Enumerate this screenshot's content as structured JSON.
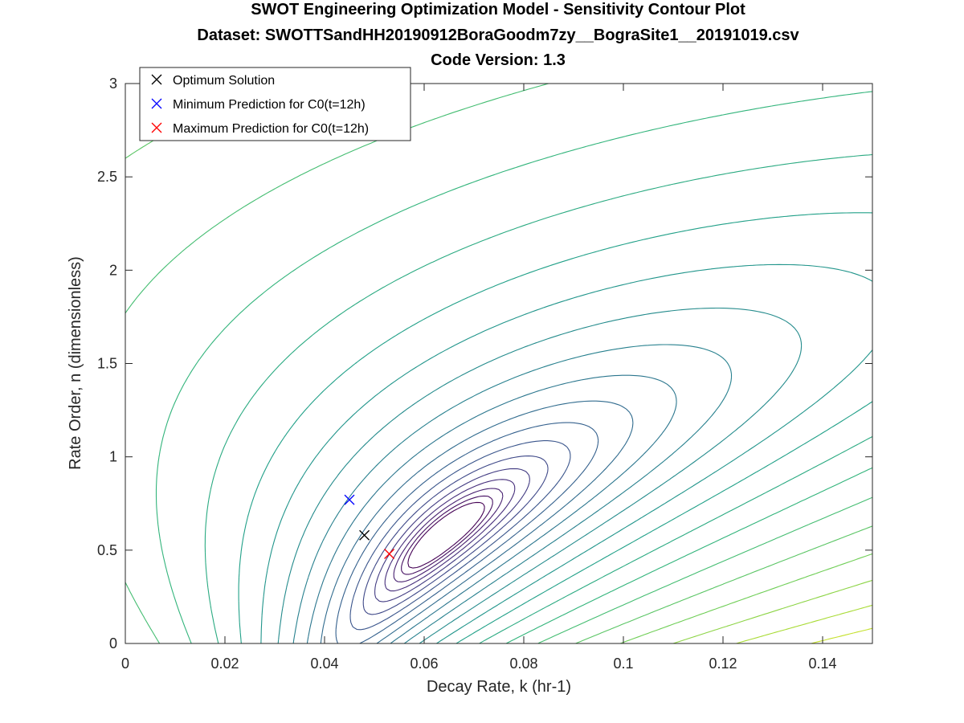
{
  "chart_data": {
    "type": "contour",
    "title": [
      "SWOT Engineering Optimization Model - Sensitivity Contour Plot",
      "Dataset: SWOTTSandHH20190912BoraGoodm7zy__BograSite1__20191019.csv",
      "Code Version: 1.3"
    ],
    "xlabel": "Decay Rate, k (hr-1)",
    "ylabel": "Rate Order, n (dimensionless)",
    "xlim": [
      0,
      0.15
    ],
    "ylim": [
      0,
      3
    ],
    "xticks": [
      "0",
      "0.02",
      "0.04",
      "0.06",
      "0.08",
      "0.1",
      "0.12",
      "0.14"
    ],
    "yticks": [
      "0",
      "0.5",
      "1",
      "1.5",
      "2",
      "2.5",
      "3"
    ],
    "grid": false,
    "colormap": "viridis",
    "contour_levels": 24,
    "markers": [
      {
        "label": "Optimum Solution",
        "x": 0.048,
        "y": 0.58,
        "color": "#000000"
      },
      {
        "label": "Minimum Prediction for C0(t=12h)",
        "x": 0.045,
        "y": 0.77,
        "color": "#0000ff"
      },
      {
        "label": "Maximum Prediction for C0(t=12h)",
        "x": 0.053,
        "y": 0.48,
        "color": "#ff0000"
      }
    ],
    "legend_position": "top-left"
  }
}
